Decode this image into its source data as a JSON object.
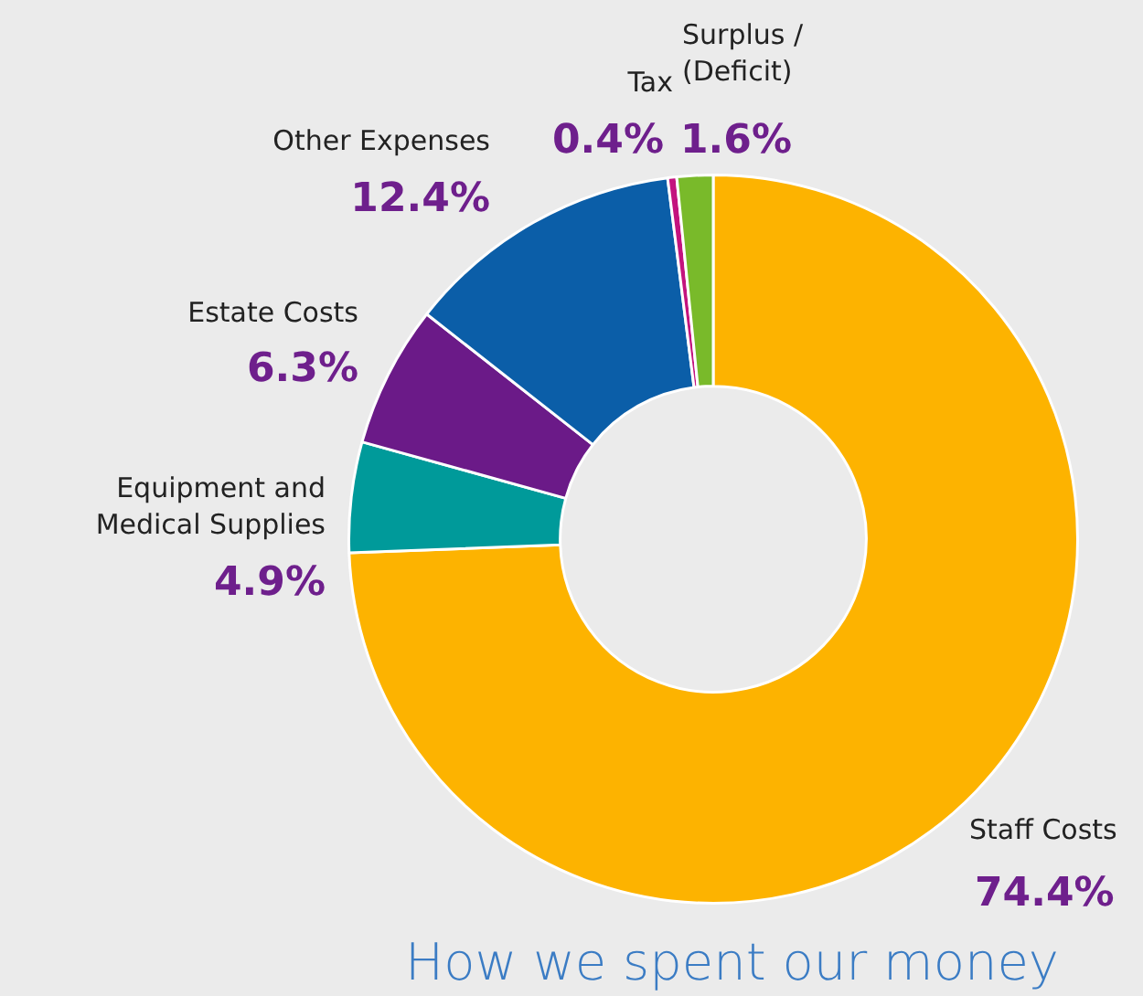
{
  "chart_data": {
    "type": "donut",
    "title": "How we spent our money",
    "categories": [
      "Staff Costs",
      "Equipment and Medical Supplies",
      "Estate Costs",
      "Other Expenses",
      "Tax",
      "Surplus / (Deficit)"
    ],
    "values": [
      74.4,
      4.9,
      6.3,
      12.4,
      0.4,
      1.6
    ],
    "colors": [
      "#fdb300",
      "#009a9a",
      "#6b1a88",
      "#0b5ea8",
      "#c3137e",
      "#79ba2a"
    ],
    "value_labels": [
      "74.4%",
      "4.9%",
      "6.3%",
      "12.4%",
      "0.4%",
      "1.6%"
    ]
  }
}
